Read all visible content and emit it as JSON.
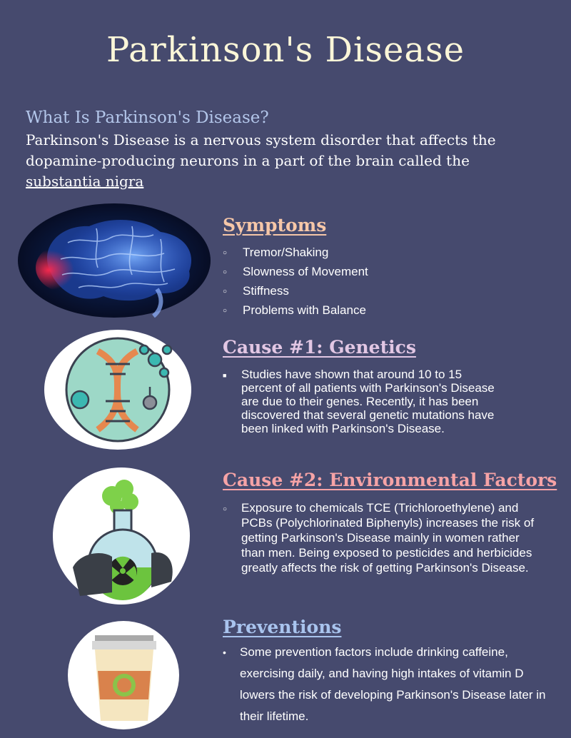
{
  "title": "Parkinson's Disease",
  "intro": {
    "heading": "What Is Parkinson's Disease?",
    "text": "Parkinson's Disease is a nervous system disorder that affects the dopamine-producing neurons in a part of the brain called the ",
    "link": "substantia nigra"
  },
  "symptoms": {
    "heading": "Symptoms",
    "items": [
      "Tremor/Shaking",
      "Slowness of Movement",
      "Stiffness",
      "Problems with Balance"
    ]
  },
  "genetics": {
    "heading": "Cause #1: Genetics",
    "items": [
      "Studies have shown that around 10 to 15 percent of all patients with Parkinson's Disease are due to their genes. Recently, it has been discovered that several genetic mutations have been linked with Parkinson's Disease."
    ]
  },
  "environment": {
    "heading": "Cause #2: Environmental Factors",
    "items": [
      "Exposure to chemicals TCE (Trichloroethylene) and PCBs (Polychlorinated Biphenyls) increases the risk of getting Parkinson's Disease mainly in women rather than men. Being exposed to pesticides and herbicides greatly affects the risk of getting Parkinson's Disease."
    ]
  },
  "preventions": {
    "heading": "Preventions",
    "items": [
      "Some prevention factors include drinking caffeine, exercising daily, and having high intakes of vitamin D lowers the risk of developing Parkinson's Disease later in their lifetime."
    ]
  },
  "colors": {
    "background": "#464a6e",
    "title": "#fbf6d8",
    "intro_heading": "#b3c6ea",
    "symptoms_heading": "#f6c7a8",
    "genetics_heading": "#e2c7e4",
    "environment_heading": "#f6a3a6",
    "preventions_heading": "#a9c4ee"
  },
  "icons": {
    "brain": "brain-image",
    "dna": "dna-icon",
    "chemical": "radioactive-flask-icon",
    "cup": "coffee-cup-icon"
  }
}
